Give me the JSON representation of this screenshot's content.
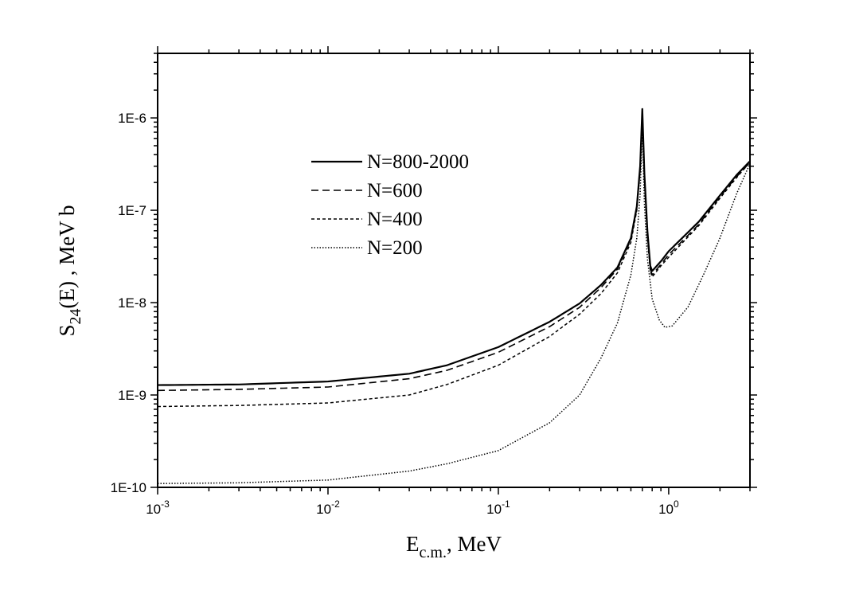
{
  "chart_data": {
    "type": "line",
    "xscale": "log",
    "yscale": "log",
    "xlim": [
      0.001,
      3.0
    ],
    "ylim": [
      1e-10,
      5e-06
    ],
    "xlabel": {
      "main": "E",
      "sub": "c.m.",
      "unit": ",  MeV"
    },
    "ylabel": {
      "main": "S",
      "sub": "24",
      "arg": "(E) ,  MeV b"
    },
    "x_ticks": [
      {
        "value": 0.001,
        "base": "10",
        "exp": "-3"
      },
      {
        "value": 0.01,
        "base": "10",
        "exp": "-2"
      },
      {
        "value": 0.1,
        "base": "10",
        "exp": "-1"
      },
      {
        "value": 1,
        "base": "10",
        "exp": "0"
      }
    ],
    "y_ticks": [
      {
        "value": 1e-10,
        "label": "1E-10"
      },
      {
        "value": 1e-09,
        "label": "1E-9"
      },
      {
        "value": 1e-08,
        "label": "1E-8"
      },
      {
        "value": 1e-07,
        "label": "1E-7"
      },
      {
        "value": 1e-06,
        "label": "1E-6"
      }
    ],
    "legend_position": "upper-left",
    "series": [
      {
        "name": "N=800-2000",
        "style": "solid",
        "points": [
          [
            0.001,
            1.28e-09
          ],
          [
            0.003,
            1.3e-09
          ],
          [
            0.01,
            1.4e-09
          ],
          [
            0.03,
            1.7e-09
          ],
          [
            0.05,
            2.1e-09
          ],
          [
            0.1,
            3.3e-09
          ],
          [
            0.2,
            6.2e-09
          ],
          [
            0.3,
            9.8e-09
          ],
          [
            0.4,
            1.55e-08
          ],
          [
            0.5,
            2.4e-08
          ],
          [
            0.6,
            5e-08
          ],
          [
            0.65,
            1.1e-07
          ],
          [
            0.68,
            3e-07
          ],
          [
            0.7,
            1.25e-06
          ],
          [
            0.72,
            2.5e-07
          ],
          [
            0.75,
            6e-08
          ],
          [
            0.78,
            2.5e-08
          ],
          [
            0.8,
            2.2e-08
          ],
          [
            0.9,
            2.8e-08
          ],
          [
            1.0,
            3.6e-08
          ],
          [
            1.5,
            7.5e-08
          ],
          [
            2.0,
            1.45e-07
          ],
          [
            2.5,
            2.4e-07
          ],
          [
            3.0,
            3.4e-07
          ]
        ]
      },
      {
        "name": "N=600",
        "style": "dashed",
        "points": [
          [
            0.001,
            1.12e-09
          ],
          [
            0.003,
            1.15e-09
          ],
          [
            0.01,
            1.22e-09
          ],
          [
            0.03,
            1.5e-09
          ],
          [
            0.05,
            1.85e-09
          ],
          [
            0.1,
            2.9e-09
          ],
          [
            0.2,
            5.5e-09
          ],
          [
            0.3,
            8.9e-09
          ],
          [
            0.4,
            1.45e-08
          ],
          [
            0.5,
            2.3e-08
          ],
          [
            0.6,
            4.8e-08
          ],
          [
            0.65,
            1.05e-07
          ],
          [
            0.68,
            2.9e-07
          ],
          [
            0.7,
            1.2e-06
          ],
          [
            0.72,
            2.4e-07
          ],
          [
            0.75,
            5.6e-08
          ],
          [
            0.78,
            2.3e-08
          ],
          [
            0.8,
            2e-08
          ],
          [
            0.9,
            2.6e-08
          ],
          [
            1.0,
            3.3e-08
          ],
          [
            1.5,
            7e-08
          ],
          [
            2.0,
            1.4e-07
          ],
          [
            2.5,
            2.3e-07
          ],
          [
            3.0,
            3.3e-07
          ]
        ]
      },
      {
        "name": "N=400",
        "style": "short-dashed",
        "points": [
          [
            0.001,
            7.5e-10
          ],
          [
            0.003,
            7.7e-10
          ],
          [
            0.01,
            8.2e-10
          ],
          [
            0.03,
            1e-09
          ],
          [
            0.05,
            1.3e-09
          ],
          [
            0.1,
            2.1e-09
          ],
          [
            0.2,
            4.3e-09
          ],
          [
            0.3,
            7.5e-09
          ],
          [
            0.4,
            1.25e-08
          ],
          [
            0.5,
            2.1e-08
          ],
          [
            0.6,
            4.5e-08
          ],
          [
            0.65,
            1e-07
          ],
          [
            0.68,
            2.7e-07
          ],
          [
            0.7,
            1.1e-06
          ],
          [
            0.72,
            2.2e-07
          ],
          [
            0.75,
            5e-08
          ],
          [
            0.78,
            2.2e-08
          ],
          [
            0.8,
            1.9e-08
          ],
          [
            0.9,
            2.5e-08
          ],
          [
            1.0,
            3.1e-08
          ],
          [
            1.5,
            6.8e-08
          ],
          [
            2.0,
            1.35e-07
          ],
          [
            2.5,
            2.25e-07
          ],
          [
            3.0,
            3.3e-07
          ]
        ]
      },
      {
        "name": "N=200",
        "style": "dotted",
        "points": [
          [
            0.001,
            1.1e-10
          ],
          [
            0.003,
            1.12e-10
          ],
          [
            0.01,
            1.2e-10
          ],
          [
            0.03,
            1.5e-10
          ],
          [
            0.05,
            1.8e-10
          ],
          [
            0.1,
            2.5e-10
          ],
          [
            0.2,
            5e-10
          ],
          [
            0.3,
            1e-09
          ],
          [
            0.4,
            2.5e-09
          ],
          [
            0.5,
            6e-09
          ],
          [
            0.6,
            2e-08
          ],
          [
            0.65,
            5e-08
          ],
          [
            0.68,
            1.5e-07
          ],
          [
            0.7,
            8e-07
          ],
          [
            0.72,
            1.2e-07
          ],
          [
            0.75,
            3e-08
          ],
          [
            0.8,
            1.1e-08
          ],
          [
            0.88,
            6.5e-09
          ],
          [
            0.95,
            5.4e-09
          ],
          [
            1.05,
            5.6e-09
          ],
          [
            1.3,
            9e-09
          ],
          [
            1.6,
            2e-08
          ],
          [
            2.0,
            5e-08
          ],
          [
            2.5,
            1.5e-07
          ],
          [
            3.0,
            3.2e-07
          ]
        ]
      }
    ]
  }
}
